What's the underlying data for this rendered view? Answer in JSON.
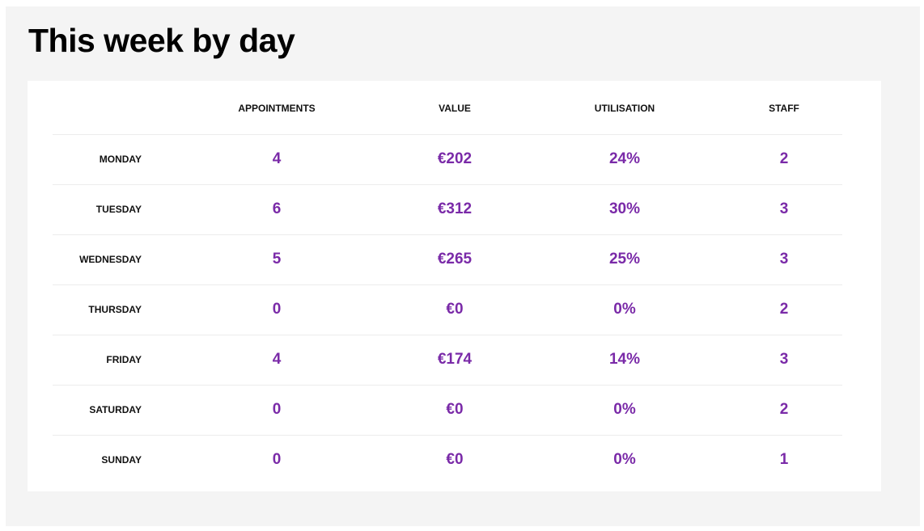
{
  "page": {
    "title": "This week by day"
  },
  "table": {
    "headers": {
      "day": "",
      "appointments": "APPOINTMENTS",
      "value": "VALUE",
      "utilisation": "UTILISATION",
      "staff": "STAFF"
    },
    "rows": [
      {
        "day": "MONDAY",
        "appointments": "4",
        "value": "€202",
        "utilisation": "24%",
        "staff": "2"
      },
      {
        "day": "TUESDAY",
        "appointments": "6",
        "value": "€312",
        "utilisation": "30%",
        "staff": "3"
      },
      {
        "day": "WEDNESDAY",
        "appointments": "5",
        "value": "€265",
        "utilisation": "25%",
        "staff": "3"
      },
      {
        "day": "THURSDAY",
        "appointments": "0",
        "value": "€0",
        "utilisation": "0%",
        "staff": "2"
      },
      {
        "day": "FRIDAY",
        "appointments": "4",
        "value": "€174",
        "utilisation": "14%",
        "staff": "3"
      },
      {
        "day": "SATURDAY",
        "appointments": "0",
        "value": "€0",
        "utilisation": "0%",
        "staff": "2"
      },
      {
        "day": "SUNDAY",
        "appointments": "0",
        "value": "€0",
        "utilisation": "0%",
        "staff": "1"
      }
    ]
  },
  "colors": {
    "background": "#f4f4f4",
    "card": "#ffffff",
    "value_text": "#7a2aa8",
    "label_text": "#111111"
  }
}
